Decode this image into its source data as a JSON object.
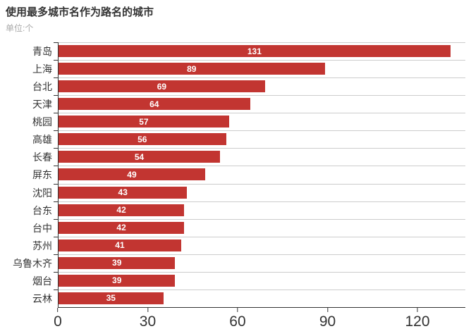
{
  "header": {
    "title": "使用最多城市名作为路名的城市",
    "subtitle": "单位:个"
  },
  "colors": {
    "bar": "#c23531",
    "axis": "#333333",
    "grid": "#cccccc",
    "title": "#333333",
    "subtitle": "#aaaaaa",
    "value_label": "#ffffff",
    "background": "#ffffff"
  },
  "chart_data": {
    "type": "bar",
    "orientation": "horizontal",
    "title": "使用最多城市名作为路名的城市",
    "subtitle": "单位:个",
    "xlabel": "",
    "ylabel": "",
    "categories": [
      "青岛",
      "上海",
      "台北",
      "天津",
      "桃园",
      "高雄",
      "长春",
      "屏东",
      "沈阳",
      "台东",
      "台中",
      "苏州",
      "乌鲁木齐",
      "烟台",
      "云林"
    ],
    "values": [
      131,
      89,
      69,
      64,
      57,
      56,
      54,
      49,
      43,
      42,
      42,
      41,
      39,
      39,
      35
    ],
    "x_ticks": [
      0,
      30,
      60,
      90,
      120
    ],
    "xlim": [
      0,
      136
    ],
    "grid": true,
    "gridline_orientation": "horizontal-row-boundaries",
    "legend": "none",
    "value_labels": "inside-center-white-bold"
  }
}
